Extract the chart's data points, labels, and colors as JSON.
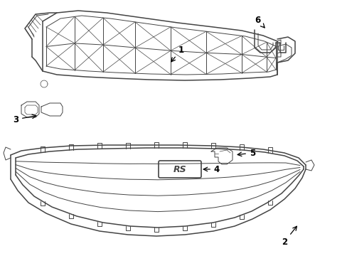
{
  "background_color": "#ffffff",
  "line_color": "#444444",
  "text_color": "#000000",
  "label_fontsize": 8.5,
  "fig_width": 4.89,
  "fig_height": 3.6,
  "dpi": 100
}
